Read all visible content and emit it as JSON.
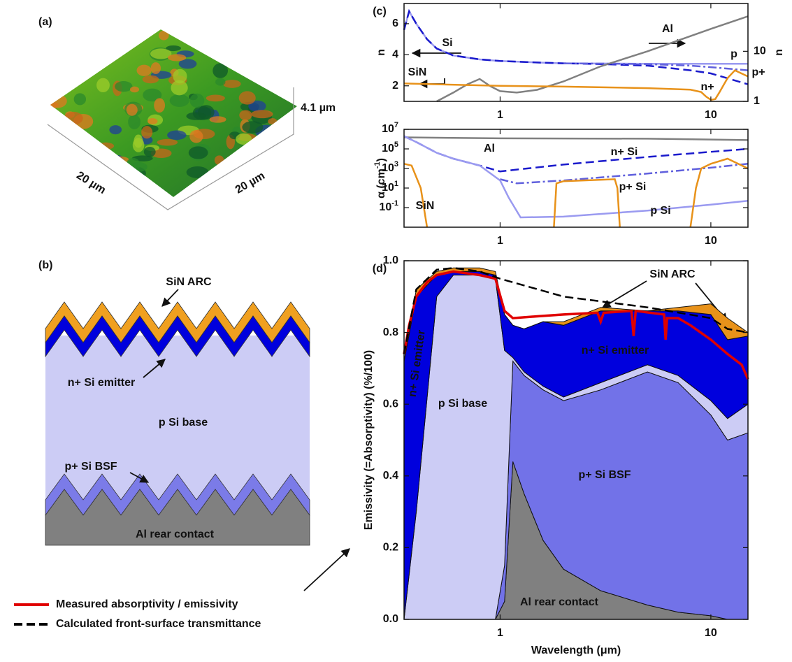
{
  "panels": {
    "a": {
      "label": "(a)",
      "z_size": "4.1 µm",
      "x_size": "20 µm",
      "y_size": "20 µm"
    },
    "b": {
      "label": "(b)",
      "layers": [
        "SiN ARC",
        "n+ Si emitter",
        "p Si base",
        "p+ Si BSF",
        "Al rear contact"
      ]
    }
  },
  "chart_data": [
    {
      "type": "line",
      "panel_label": "(c)",
      "y_label": "n",
      "y2_label": "n",
      "xscale": "log",
      "xlim": [
        0.35,
        15
      ],
      "xticks": [
        1,
        10
      ],
      "ylim": [
        1,
        7.3
      ],
      "yticks": [
        2,
        4,
        6
      ],
      "y2scale": "log",
      "y2lim": [
        1,
        90
      ],
      "y2ticks": [
        1,
        10
      ],
      "annotations": [
        "Si"
      ],
      "series": [
        {
          "name": "p",
          "color": "#9a9af0",
          "dash": "solid",
          "x": [
            0.35,
            0.37,
            0.4,
            0.45,
            0.5,
            0.6,
            0.8,
            1,
            1.5,
            2,
            5,
            10,
            15
          ],
          "values": [
            5.6,
            6.8,
            6.0,
            5.0,
            4.4,
            3.95,
            3.7,
            3.6,
            3.5,
            3.45,
            3.42,
            3.42,
            3.42
          ]
        },
        {
          "name": "n+",
          "color": "#1a1acc",
          "dash": "dashed",
          "x": [
            0.35,
            0.37,
            0.4,
            0.45,
            0.5,
            0.6,
            0.8,
            1,
            1.5,
            2,
            3,
            5,
            8,
            10,
            15
          ],
          "values": [
            5.6,
            6.8,
            6.0,
            5.0,
            4.4,
            3.95,
            3.7,
            3.6,
            3.5,
            3.45,
            3.4,
            3.3,
            3.0,
            2.8,
            2.1
          ]
        },
        {
          "name": "p+",
          "color": "#6060dd",
          "dash": "dashdot",
          "x": [
            2,
            3,
            5,
            8,
            10,
            15
          ],
          "values": [
            3.45,
            3.43,
            3.4,
            3.3,
            3.2,
            3.0
          ]
        },
        {
          "name": "Al",
          "color": "#808080",
          "dash": "solid",
          "axis": "y2",
          "x": [
            0.5,
            0.6,
            0.7,
            0.8,
            0.9,
            1,
            1.2,
            1.5,
            2,
            3,
            5,
            10,
            15
          ],
          "values": [
            1,
            1.5,
            2.2,
            2.8,
            2,
            1.6,
            1.5,
            1.7,
            2.5,
            5,
            10,
            28,
            50
          ]
        },
        {
          "name": "SiN",
          "color": "#e8921a",
          "dash": "solid",
          "x": [
            0.35,
            0.5,
            1,
            2,
            5,
            8,
            9,
            9.5,
            10,
            10.5,
            11,
            12,
            13,
            15
          ],
          "values": [
            2.15,
            2.1,
            2.0,
            1.95,
            1.85,
            1.75,
            1.6,
            1.3,
            1.1,
            1.15,
            1.6,
            2.5,
            3.0,
            2.6
          ]
        }
      ]
    },
    {
      "type": "line",
      "y_label": "α (cm^-1)",
      "xscale": "log",
      "xlim": [
        0.35,
        15
      ],
      "xticks": [
        1,
        10
      ],
      "yscale": "log",
      "ylim": [
        0.001,
        10000000
      ],
      "yticks": [
        {
          "value": 0.1,
          "label": "10^-1"
        },
        {
          "value": 10,
          "label": "10^1"
        },
        {
          "value": 1000,
          "label": "10^3"
        },
        {
          "value": 100000,
          "label": "10^5"
        },
        {
          "value": 10000000,
          "label": "10^7"
        }
      ],
      "series": [
        {
          "name": "Al",
          "color": "#808080",
          "dash": "solid",
          "x": [
            0.35,
            1,
            5,
            15
          ],
          "values": [
            1500000,
            1200000,
            1100000,
            800000
          ]
        },
        {
          "name": "n+ Si",
          "color": "#1a1acc",
          "dash": "dashed",
          "x": [
            0.35,
            0.4,
            0.5,
            0.6,
            0.8,
            1,
            2,
            5,
            10,
            15
          ],
          "values": [
            2000000,
            500000,
            40000,
            10000,
            2000,
            500,
            2500,
            15000,
            50000,
            100000
          ]
        },
        {
          "name": "p+ Si",
          "color": "#6060dd",
          "dash": "dashdot",
          "x": [
            1,
            1.2,
            2,
            5,
            10,
            15
          ],
          "values": [
            80,
            30,
            60,
            300,
            1200,
            3000
          ]
        },
        {
          "name": "p Si",
          "color": "#9a9af0",
          "dash": "solid",
          "x": [
            0.35,
            0.4,
            0.5,
            0.6,
            0.8,
            1,
            1.1,
            1.25,
            2,
            5,
            10,
            15
          ],
          "values": [
            2000000,
            500000,
            40000,
            10000,
            2000,
            60,
            1,
            0.01,
            0.012,
            0.05,
            0.2,
            0.5
          ]
        },
        {
          "name": "SiN",
          "color": "#e8921a",
          "dash": "solid",
          "x": [
            0.35,
            0.38,
            0.42,
            0.45,
            1,
            1.8,
            1.85,
            2,
            3.5,
            3.6,
            3.7,
            5,
            8,
            8.5,
            9,
            10,
            12,
            15
          ],
          "values": [
            3000,
            2000,
            10,
            0.001,
            null,
            0.001,
            30,
            50,
            80,
            10,
            0.001,
            null,
            0.001,
            10,
            1000,
            3000,
            10000,
            1000
          ]
        }
      ]
    },
    {
      "type": "stacked_area",
      "panel_label": "(d)",
      "x_label": "Wavelength (μm)",
      "y_label": "Emissivity (=Absorptivity) (%/100)",
      "xscale": "log",
      "xlim": [
        0.35,
        15
      ],
      "xticks": [
        1,
        10
      ],
      "ylim": [
        0,
        1
      ],
      "yticks": [
        {
          "value": 0,
          "label": "0.0"
        },
        0.2,
        0.4,
        0.6,
        0.8,
        {
          "value": 1,
          "label": "1.0"
        }
      ],
      "annotations": [
        "n+ Si emitter"
      ],
      "x": [
        0.35,
        0.4,
        0.5,
        0.6,
        0.8,
        0.95,
        1.05,
        1.15,
        1.3,
        1.6,
        2,
        3,
        5,
        7,
        10,
        12,
        15
      ],
      "series": [
        {
          "name": "Al rear contact",
          "color": "#808080",
          "values": [
            0,
            0,
            0,
            0,
            0,
            0,
            0.05,
            0.44,
            0.35,
            0.22,
            0.14,
            0.08,
            0.04,
            0.02,
            0.01,
            0,
            0
          ]
        },
        {
          "name": "p+ Si BSF",
          "color": "#7272e8",
          "values": [
            0,
            0,
            0,
            0,
            0,
            0,
            0.1,
            0.28,
            0.33,
            0.42,
            0.47,
            0.56,
            0.65,
            0.64,
            0.56,
            0.5,
            0.52
          ]
        },
        {
          "name": "p Si base",
          "color": "#ccccf5",
          "values": [
            0,
            0.3,
            0.9,
            0.96,
            0.96,
            0.95,
            0.6,
            0.01,
            0.01,
            0.01,
            0.01,
            0.02,
            0.02,
            0.02,
            0.04,
            0.06,
            0.08
          ]
        },
        {
          "name": "n+ Si emitter",
          "color": "#0000dd",
          "values": [
            0.72,
            0.6,
            0.06,
            0.01,
            0.01,
            0.01,
            0.1,
            0.09,
            0.12,
            0.18,
            0.2,
            0.2,
            0.15,
            0.18,
            0.24,
            0.22,
            0.19
          ]
        },
        {
          "name": "SiN ARC",
          "color": "#e8921a",
          "values": [
            0,
            0.02,
            0.01,
            0.01,
            0.01,
            0.01,
            0,
            0,
            0,
            0,
            0.01,
            0.01,
            0,
            0.01,
            0.03,
            0.06,
            0.01
          ]
        }
      ],
      "lines": [
        {
          "name": "Measured absorptivity / emissivity",
          "color": "#e00000",
          "dash": "solid",
          "x": [
            0.35,
            0.37,
            0.4,
            0.45,
            0.5,
            0.6,
            0.8,
            0.95,
            1.05,
            1.15,
            1.5,
            2,
            2.9,
            3,
            3.1,
            4.2,
            4.3,
            4.4,
            6,
            6.1,
            6.2,
            7,
            8,
            10,
            12,
            14,
            15
          ],
          "values": [
            0.74,
            0.82,
            0.9,
            0.94,
            0.96,
            0.97,
            0.96,
            0.95,
            0.86,
            0.84,
            0.845,
            0.85,
            0.855,
            0.83,
            0.855,
            0.86,
            0.79,
            0.86,
            0.85,
            0.78,
            0.84,
            0.84,
            0.82,
            0.78,
            0.74,
            0.71,
            0.67
          ]
        },
        {
          "name": "Calculated front-surface transmittance",
          "color": "#000000",
          "dash": "dashed",
          "x": [
            0.35,
            0.4,
            0.5,
            0.6,
            0.8,
            1,
            2,
            5,
            10,
            12,
            15
          ],
          "values": [
            0.74,
            0.92,
            0.975,
            0.98,
            0.97,
            0.95,
            0.9,
            0.87,
            0.84,
            0.81,
            0.8
          ]
        }
      ]
    }
  ]
}
